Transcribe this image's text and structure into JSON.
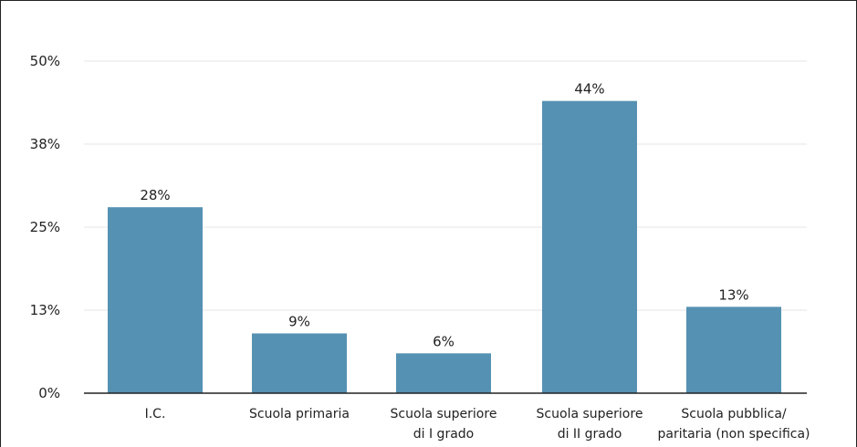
{
  "chart_data": {
    "type": "bar",
    "title": "",
    "xlabel": "",
    "ylabel": "",
    "categories": [
      [
        "I.C."
      ],
      [
        "Scuola primaria"
      ],
      [
        "Scuola superiore",
        "di I grado"
      ],
      [
        "Scuola superiore",
        "di II grado"
      ],
      [
        "Scuola pubblica/",
        "paritaria (non specifica)"
      ]
    ],
    "values": [
      28,
      9,
      6,
      44,
      13
    ],
    "value_labels": [
      "28%",
      "9%",
      "6%",
      "44%",
      "13%"
    ],
    "y_ticks": [
      0,
      12.5,
      25,
      37.5,
      50
    ],
    "y_tick_labels": [
      "0%",
      "13%",
      "25%",
      "38%",
      "50%"
    ],
    "ylim": [
      0,
      50
    ],
    "grid": true,
    "legend": "none"
  },
  "colors": {
    "bar": "#5591b2",
    "grid": "#e6e6e6",
    "axis": "#222222"
  }
}
